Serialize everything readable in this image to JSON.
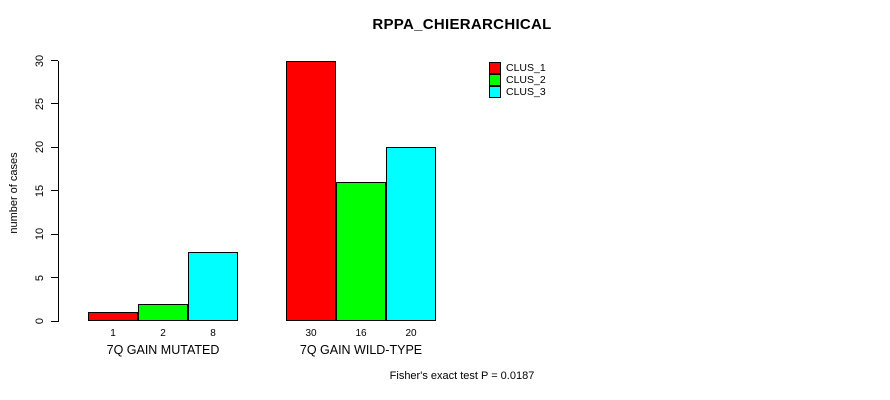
{
  "figure": {
    "title": "RPPA_CHIERARCHICAL",
    "footer": "Fisher's exact test P = 0.0187"
  },
  "chart_data": {
    "type": "bar",
    "title": "RPPA_CHIERARCHICAL",
    "xlabel": "",
    "ylabel": "number of cases",
    "ylim": [
      0,
      30
    ],
    "yticks": [
      0,
      5,
      10,
      15,
      20,
      25,
      30
    ],
    "grid": false,
    "categories": [
      "7Q GAIN MUTATED",
      "7Q GAIN WILD-TYPE"
    ],
    "series": [
      {
        "name": "CLUS_1",
        "color": "#ff0000",
        "values": [
          1,
          30
        ]
      },
      {
        "name": "CLUS_2",
        "color": "#00ff00",
        "values": [
          2,
          16
        ]
      },
      {
        "name": "CLUS_3",
        "color": "#00ffff",
        "values": [
          8,
          20
        ]
      }
    ],
    "bar_value_labels": [
      [
        "1",
        "2",
        "8"
      ],
      [
        "30",
        "16",
        "20"
      ]
    ],
    "legend": {
      "position": "top-right",
      "entries": [
        "CLUS_1",
        "CLUS_2",
        "CLUS_3"
      ]
    },
    "annotation": "Fisher's exact test P = 0.0187"
  }
}
